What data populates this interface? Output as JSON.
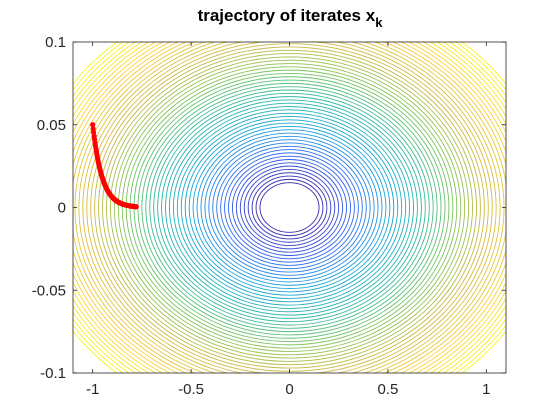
{
  "chart_data": {
    "type": "contour",
    "title": "trajectory of iterates x",
    "title_subscript": "k",
    "xlabel": "",
    "ylabel": "",
    "xlim": [
      -1.1,
      1.1
    ],
    "ylim": [
      -0.1,
      0.1
    ],
    "xticks": [
      -1,
      -0.5,
      0,
      0.5,
      1
    ],
    "xtick_labels": [
      "-1",
      "-0.5",
      "0",
      "0.5",
      "1"
    ],
    "yticks": [
      -0.1,
      -0.05,
      0,
      0.05,
      0.1
    ],
    "ytick_labels": [
      "-0.1",
      "-0.05",
      "0",
      "0.05",
      "0.1"
    ],
    "grid": false,
    "contour": {
      "function": "x^2 + 100*y^2",
      "levels_sqrt_start": 0.15,
      "levels_sqrt_step": 0.02,
      "levels_sqrt_count": 60,
      "colormap": [
        "#3e26a8",
        "#2f67f7",
        "#15a5d9",
        "#2ab8a5",
        "#7fc55b",
        "#d3b93f",
        "#fcd232",
        "#f9fb14"
      ],
      "colormap_sqrt_range": [
        0.15,
        1.35
      ]
    },
    "series": [
      {
        "type": "trajectory",
        "color": "#ff0000",
        "x_start": -1.0,
        "x_end": -0.78,
        "y_start": 0.05,
        "y_end": 0.0,
        "x": [
          -1.0,
          -0.9976,
          -0.9953,
          -0.9929,
          -0.9906,
          -0.9882,
          -0.9859,
          -0.9835,
          -0.9812,
          -0.9788,
          -0.9765,
          -0.9741,
          -0.9718,
          -0.9694,
          -0.9671,
          -0.9647,
          -0.9624,
          -0.96,
          -0.9577,
          -0.9553,
          -0.953,
          -0.9507,
          -0.9484,
          -0.946,
          -0.9437,
          -0.9414,
          -0.9391,
          -0.9368,
          -0.9345,
          -0.9322,
          -0.9299,
          -0.9276,
          -0.9253,
          -0.923,
          -0.9207,
          -0.9184,
          -0.9161,
          -0.9138,
          -0.9116,
          -0.9093,
          -0.907,
          -0.9047,
          -0.9025,
          -0.9002,
          -0.8979,
          -0.8957,
          -0.8934,
          -0.8912,
          -0.8889,
          -0.8867,
          -0.8844,
          -0.8822,
          -0.88,
          -0.8777,
          -0.8755,
          -0.8733,
          -0.871,
          -0.8688,
          -0.8666,
          -0.8644,
          -0.8622,
          -0.86,
          -0.8578,
          -0.8556,
          -0.8534,
          -0.8512,
          -0.849,
          -0.8468,
          -0.8446,
          -0.8424,
          -0.8402,
          -0.8381,
          -0.8359,
          -0.8337,
          -0.8316,
          -0.8294,
          -0.8272,
          -0.8251,
          -0.8229,
          -0.8208,
          -0.8186,
          -0.8165,
          -0.8143,
          -0.8122,
          -0.8101,
          -0.8079,
          -0.8058,
          -0.8037,
          -0.8016,
          -0.7995,
          -0.7973,
          -0.7952,
          -0.7931,
          -0.791,
          -0.7889,
          -0.7868,
          -0.7847,
          -0.7826,
          -0.7806,
          -0.7785,
          -0.78
        ]
      }
    ]
  }
}
